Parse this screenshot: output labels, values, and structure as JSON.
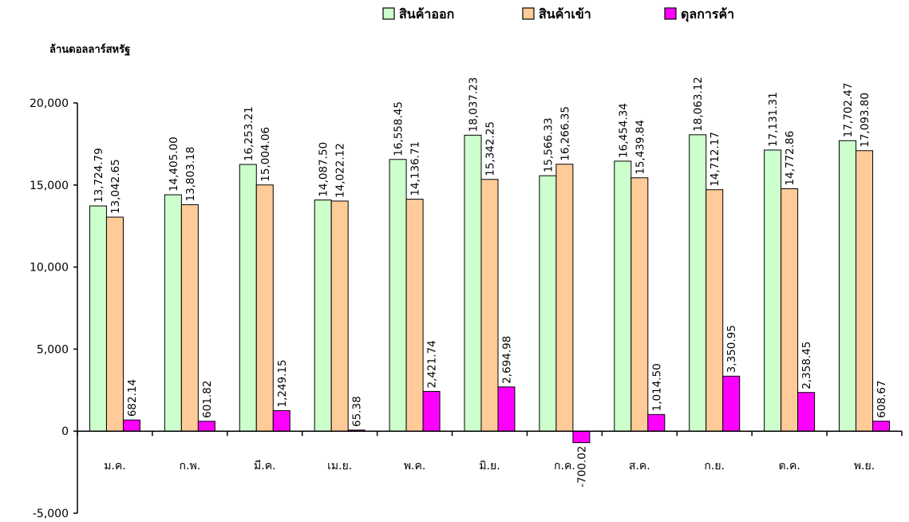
{
  "chart_data": {
    "type": "bar",
    "title": "",
    "ylabel": "ล้านดอลลาร์สหรัฐ",
    "xlabel": "",
    "ylim": [
      -5000,
      20000
    ],
    "yticks": [
      {
        "value": 20000,
        "label": "20,000"
      },
      {
        "value": 15000,
        "label": "15,000"
      },
      {
        "value": 10000,
        "label": "10,000"
      },
      {
        "value": 5000,
        "label": "5,000"
      },
      {
        "value": 0,
        "label": "0"
      },
      {
        "value": -5000,
        "label": "-5,000"
      }
    ],
    "legend_position": "top-right",
    "grid": false,
    "categories": [
      "ม.ค.",
      "ก.พ.",
      "มี.ค.",
      "เม.ย.",
      "พ.ค.",
      "มิ.ย.",
      "ก.ค.",
      "ส.ค.",
      "ก.ย.",
      "ต.ค.",
      "พ.ย."
    ],
    "series": [
      {
        "name": "สินค้าออก",
        "color": "#ccffcc",
        "values": [
          13724.79,
          14405.0,
          16253.21,
          14087.5,
          16558.45,
          18037.23,
          15566.33,
          16454.34,
          18063.12,
          17131.31,
          17702.47
        ],
        "labels": [
          "13,724.79",
          "14,405.00",
          "16,253.21",
          "14,087.50",
          "16,558.45",
          "18,037.23",
          "15,566.33",
          "16,454.34",
          "18,063.12",
          "17,131.31",
          "17,702.47"
        ]
      },
      {
        "name": "สินค้าเข้า",
        "color": "#ffcc99",
        "values": [
          13042.65,
          13803.18,
          15004.06,
          14022.12,
          14136.71,
          15342.25,
          16266.35,
          15439.84,
          14712.17,
          14772.86,
          17093.8
        ],
        "labels": [
          "13,042.65",
          "13,803.18",
          "15,004.06",
          "14,022.12",
          "14,136.71",
          "15,342.25",
          "16,266.35",
          "15,439.84",
          "14,712.17",
          "14,772.86",
          "17,093.80"
        ]
      },
      {
        "name": "ดุลการค้า",
        "color": "#ff00ff",
        "values": [
          682.14,
          601.82,
          1249.15,
          65.38,
          2421.74,
          2694.98,
          -700.02,
          1014.5,
          3350.95,
          2358.45,
          608.67
        ],
        "labels": [
          "682.14",
          "601.82",
          "1,249.15",
          "65.38",
          "2,421.74",
          "2,694.98",
          "-700.02",
          "1,014.50",
          "3,350.95",
          "2,358.45",
          "608.67"
        ]
      }
    ]
  }
}
